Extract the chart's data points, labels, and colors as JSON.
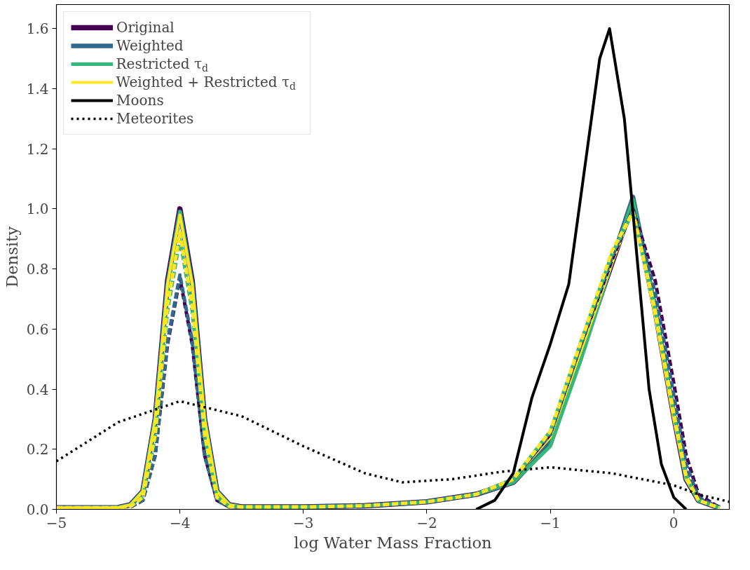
{
  "chart_data": {
    "type": "line",
    "xlabel": "log Water Mass Fraction",
    "ylabel": "Density",
    "xlim": [
      -5,
      0.45
    ],
    "ylim": [
      0,
      1.68
    ],
    "xticks": [
      {
        "value": -5,
        "label": "−5"
      },
      {
        "value": -4,
        "label": "−4"
      },
      {
        "value": -3,
        "label": "−3"
      },
      {
        "value": -2,
        "label": "−2"
      },
      {
        "value": -1,
        "label": "−1"
      },
      0
    ],
    "yticks": [
      {
        "value": 0,
        "label": "0.0"
      },
      0.2,
      0.4,
      0.6,
      0.8,
      {
        "value": 1,
        "label": "1.0"
      },
      1.2,
      1.4,
      1.6
    ],
    "grid": false,
    "legend": "top left",
    "marker": "none",
    "x": [
      -5,
      -4.5,
      -4.4,
      -4.3,
      -4.2,
      -4.1,
      -4.0,
      -3.9,
      -3.8,
      -3.7,
      -3.6,
      -3.5,
      -3,
      -2.5,
      -2,
      -1.6,
      -1.3,
      -1.0,
      -0.75,
      -0.5,
      -0.33,
      -0.15,
      0,
      0.1,
      0.2,
      0.37
    ],
    "series": [
      {
        "name": "Original",
        "color": "#440154",
        "line_style": "solid",
        "values": [
          0.005,
          0.006,
          0.015,
          0.06,
          0.3,
          0.76,
          1.0,
          0.76,
          0.3,
          0.06,
          0.015,
          0.008,
          0.008,
          0.012,
          0.025,
          0.05,
          0.09,
          0.22,
          0.52,
          0.82,
          1.02,
          0.66,
          0.31,
          0.1,
          0.03,
          0.005
        ]
      },
      {
        "name": "Weighted",
        "color": "#31688e",
        "line_style": "solid",
        "values": [
          0.005,
          0.006,
          0.015,
          0.06,
          0.3,
          0.75,
          0.99,
          0.75,
          0.3,
          0.06,
          0.015,
          0.008,
          0.008,
          0.012,
          0.025,
          0.05,
          0.09,
          0.22,
          0.52,
          0.83,
          1.04,
          0.67,
          0.32,
          0.11,
          0.03,
          0.005
        ]
      },
      {
        "name": "Restricted τ$_{d}$",
        "color": "#35b779",
        "line_style": "solid",
        "values": [
          0.005,
          0.006,
          0.015,
          0.06,
          0.3,
          0.75,
          0.99,
          0.75,
          0.3,
          0.06,
          0.015,
          0.008,
          0.008,
          0.012,
          0.025,
          0.05,
          0.09,
          0.21,
          0.5,
          0.82,
          1.03,
          0.67,
          0.31,
          0.1,
          0.03,
          0.005
        ]
      },
      {
        "name": "Weighted + Restricted τ$_{d}$",
        "color": "#fde725",
        "line_style": "solid",
        "values": [
          0.005,
          0.006,
          0.015,
          0.06,
          0.3,
          0.75,
          0.98,
          0.75,
          0.3,
          0.06,
          0.015,
          0.008,
          0.008,
          0.012,
          0.025,
          0.05,
          0.1,
          0.24,
          0.53,
          0.82,
          1.0,
          0.64,
          0.3,
          0.1,
          0.03,
          0.005
        ]
      },
      {
        "color": "#440154",
        "line_style": "dashed",
        "values": [
          null,
          null,
          0.008,
          0.03,
          0.18,
          0.55,
          0.77,
          0.55,
          0.18,
          0.03,
          0.008,
          0.008,
          0.008,
          0.012,
          0.025,
          0.05,
          0.1,
          0.25,
          0.55,
          0.83,
          1.0,
          0.76,
          0.42,
          0.18,
          0.05,
          0.005
        ]
      },
      {
        "color": "#31688e",
        "line_style": "dashed",
        "values": [
          null,
          null,
          0.008,
          0.03,
          0.18,
          0.56,
          0.78,
          0.56,
          0.18,
          0.03,
          0.008,
          0.008,
          0.008,
          0.012,
          0.025,
          0.05,
          0.1,
          0.25,
          0.55,
          0.84,
          1.0,
          0.72,
          0.38,
          0.15,
          0.04,
          0.005
        ]
      },
      {
        "color": "#35b779",
        "line_style": "dashed",
        "values": [
          null,
          null,
          0.01,
          0.04,
          0.24,
          0.66,
          0.9,
          0.66,
          0.24,
          0.04,
          0.01,
          0.008,
          0.008,
          0.012,
          0.025,
          0.05,
          0.1,
          0.26,
          0.56,
          0.85,
          0.99,
          0.66,
          0.32,
          0.11,
          0.03,
          0.005
        ]
      },
      {
        "color": "#fde725",
        "line_style": "dashed",
        "values": [
          0.005,
          0.005,
          0.01,
          0.04,
          0.25,
          0.68,
          0.92,
          0.68,
          0.25,
          0.04,
          0.01,
          0.008,
          0.008,
          0.012,
          0.025,
          0.05,
          0.1,
          0.26,
          0.56,
          0.86,
          0.99,
          0.66,
          0.32,
          0.11,
          0.03,
          0.005
        ]
      },
      {
        "name": "Moons",
        "color": "#000000",
        "line_style": "solid",
        "x": [
          -1.6,
          -1.45,
          -1.3,
          -1.15,
          -1.0,
          -0.85,
          -0.7,
          -0.6,
          -0.52,
          -0.4,
          -0.3,
          -0.2,
          -0.1,
          0,
          0.1
        ],
        "values": [
          0,
          0.03,
          0.12,
          0.37,
          0.55,
          0.75,
          1.2,
          1.5,
          1.6,
          1.3,
          0.85,
          0.4,
          0.15,
          0.04,
          0
        ]
      },
      {
        "name": "Meteorites",
        "color": "#000000",
        "line_style": "dotted",
        "x": [
          -5,
          -4.5,
          -4,
          -3.5,
          -3,
          -2.5,
          -2.2,
          -1.8,
          -1.4,
          -1.0,
          -0.5,
          0,
          0.2,
          0.45
        ],
        "values": [
          0.16,
          0.29,
          0.36,
          0.31,
          0.21,
          0.12,
          0.09,
          0.1,
          0.125,
          0.14,
          0.12,
          0.08,
          0.05,
          0.025
        ]
      }
    ]
  }
}
